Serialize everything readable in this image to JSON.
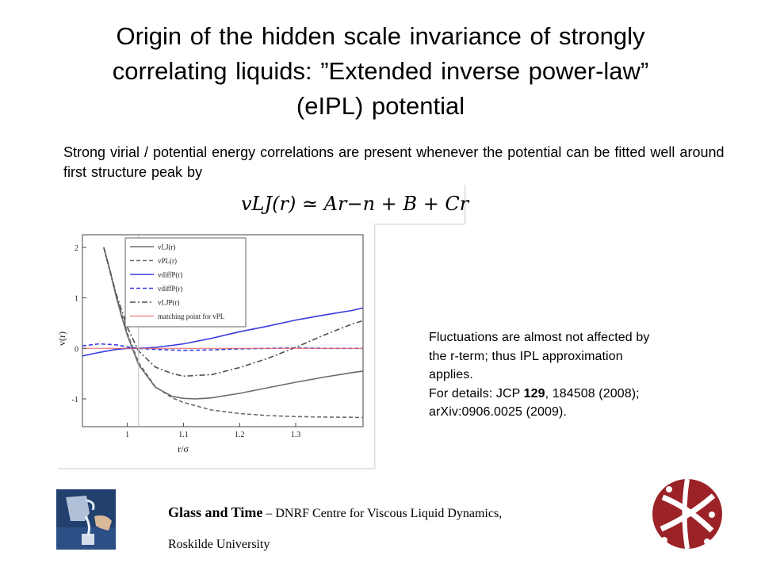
{
  "slide": {
    "title_line1": "Origin of the hidden scale invariance of  strongly",
    "title_line2": "correlating liquids: ”Extended inverse power-law”",
    "title_line3": "(eIPL) potential",
    "intro_text": "Strong virial / potential energy correlations are present whenever the potential can be fitted well around first structure peak by",
    "formula": "vLJ(r) ≃ Ar−n + B + Cr",
    "note": {
      "line1": "Fluctuations are almost not affected by",
      "line2": "the r-term; thus IPL approximation",
      "line3": "applies.",
      "line4_prefix": "For details: JCP ",
      "line4_bold": "129",
      "line4_suffix": ", 184508 (2008);",
      "line5": "arXiv:0906.0025 (2009)."
    },
    "footer": {
      "org_bold": "Glass and Time",
      "org_rest": " – DNRF Centre for Viscous Liquid Dynamics,",
      "university": "Roskilde University"
    }
  },
  "chart_data": {
    "type": "line",
    "xlabel": "r/σ",
    "ylabel": "v(r)",
    "xlim": [
      0.92,
      1.42
    ],
    "ylim": [
      -1.55,
      2.25
    ],
    "xticks": [
      1,
      1.1,
      1.2,
      1.3
    ],
    "xtick_labels": [
      "1",
      "1.1",
      "1.2",
      "1.3"
    ],
    "yticks": [
      -1,
      0,
      1,
      2
    ],
    "ytick_labels": [
      "-1",
      "0",
      "1",
      "2"
    ],
    "matching_point_x": 1.02,
    "legend_position": "top-center",
    "grid": false,
    "series": [
      {
        "name": "vLJ(r)",
        "style": "solid",
        "color": "#6b6b6b",
        "x": [
          0.958,
          0.97,
          0.98,
          0.99,
          1.0,
          1.02,
          1.05,
          1.08,
          1.1,
          1.122,
          1.15,
          1.2,
          1.25,
          1.3,
          1.35,
          1.4,
          1.42
        ],
        "y": [
          2.0,
          1.5,
          1.03,
          0.62,
          0.26,
          -0.32,
          -0.77,
          -0.95,
          -0.99,
          -1.0,
          -0.98,
          -0.89,
          -0.78,
          -0.67,
          -0.57,
          -0.48,
          -0.45
        ]
      },
      {
        "name": "vPL(r)",
        "style": "dashed",
        "color": "#6b6b6b",
        "x": [
          0.958,
          0.98,
          1.0,
          1.02,
          1.05,
          1.08,
          1.1,
          1.15,
          1.2,
          1.25,
          1.3,
          1.35,
          1.4,
          1.42
        ],
        "y": [
          2.0,
          1.05,
          0.3,
          -0.28,
          -0.76,
          -0.98,
          -1.07,
          -1.22,
          -1.29,
          -1.33,
          -1.35,
          -1.36,
          -1.365,
          -1.37
        ]
      },
      {
        "name": "vdiffP(r)",
        "style": "solid",
        "color": "#3a3ae0",
        "x": [
          0.92,
          0.95,
          0.98,
          1.0,
          1.02,
          1.05,
          1.08,
          1.1,
          1.15,
          1.2,
          1.25,
          1.3,
          1.35,
          1.4,
          1.42
        ],
        "y": [
          -0.15,
          -0.08,
          -0.02,
          0.0,
          0.0,
          0.02,
          0.06,
          0.09,
          0.2,
          0.33,
          0.44,
          0.56,
          0.66,
          0.75,
          0.8
        ]
      },
      {
        "name": "vdiffP(r)",
        "style": "dashed",
        "color": "#3a3ae0",
        "x": [
          0.92,
          0.95,
          0.98,
          1.0,
          1.02,
          1.05,
          1.1,
          1.15,
          1.2,
          1.25,
          1.3,
          1.35,
          1.4,
          1.42
        ],
        "y": [
          0.05,
          0.09,
          0.07,
          0.03,
          0.0,
          -0.02,
          -0.04,
          -0.03,
          -0.01,
          0.0,
          0.01,
          0.0,
          0.0,
          0.0
        ]
      },
      {
        "name": "vLJP(r)",
        "style": "dashdot",
        "color": "#505050",
        "x": [
          0.958,
          0.98,
          1.0,
          1.02,
          1.05,
          1.08,
          1.1,
          1.15,
          1.2,
          1.25,
          1.3,
          1.35,
          1.4,
          1.42
        ],
        "y": [
          2.0,
          1.08,
          0.42,
          -0.05,
          -0.37,
          -0.5,
          -0.55,
          -0.52,
          -0.38,
          -0.2,
          0.02,
          0.26,
          0.48,
          0.55
        ]
      },
      {
        "name": "matching point for vPL",
        "style": "thin",
        "color": "#e06060",
        "x": [
          0.92,
          1.42
        ],
        "y": [
          0.0,
          0.0
        ]
      }
    ]
  }
}
